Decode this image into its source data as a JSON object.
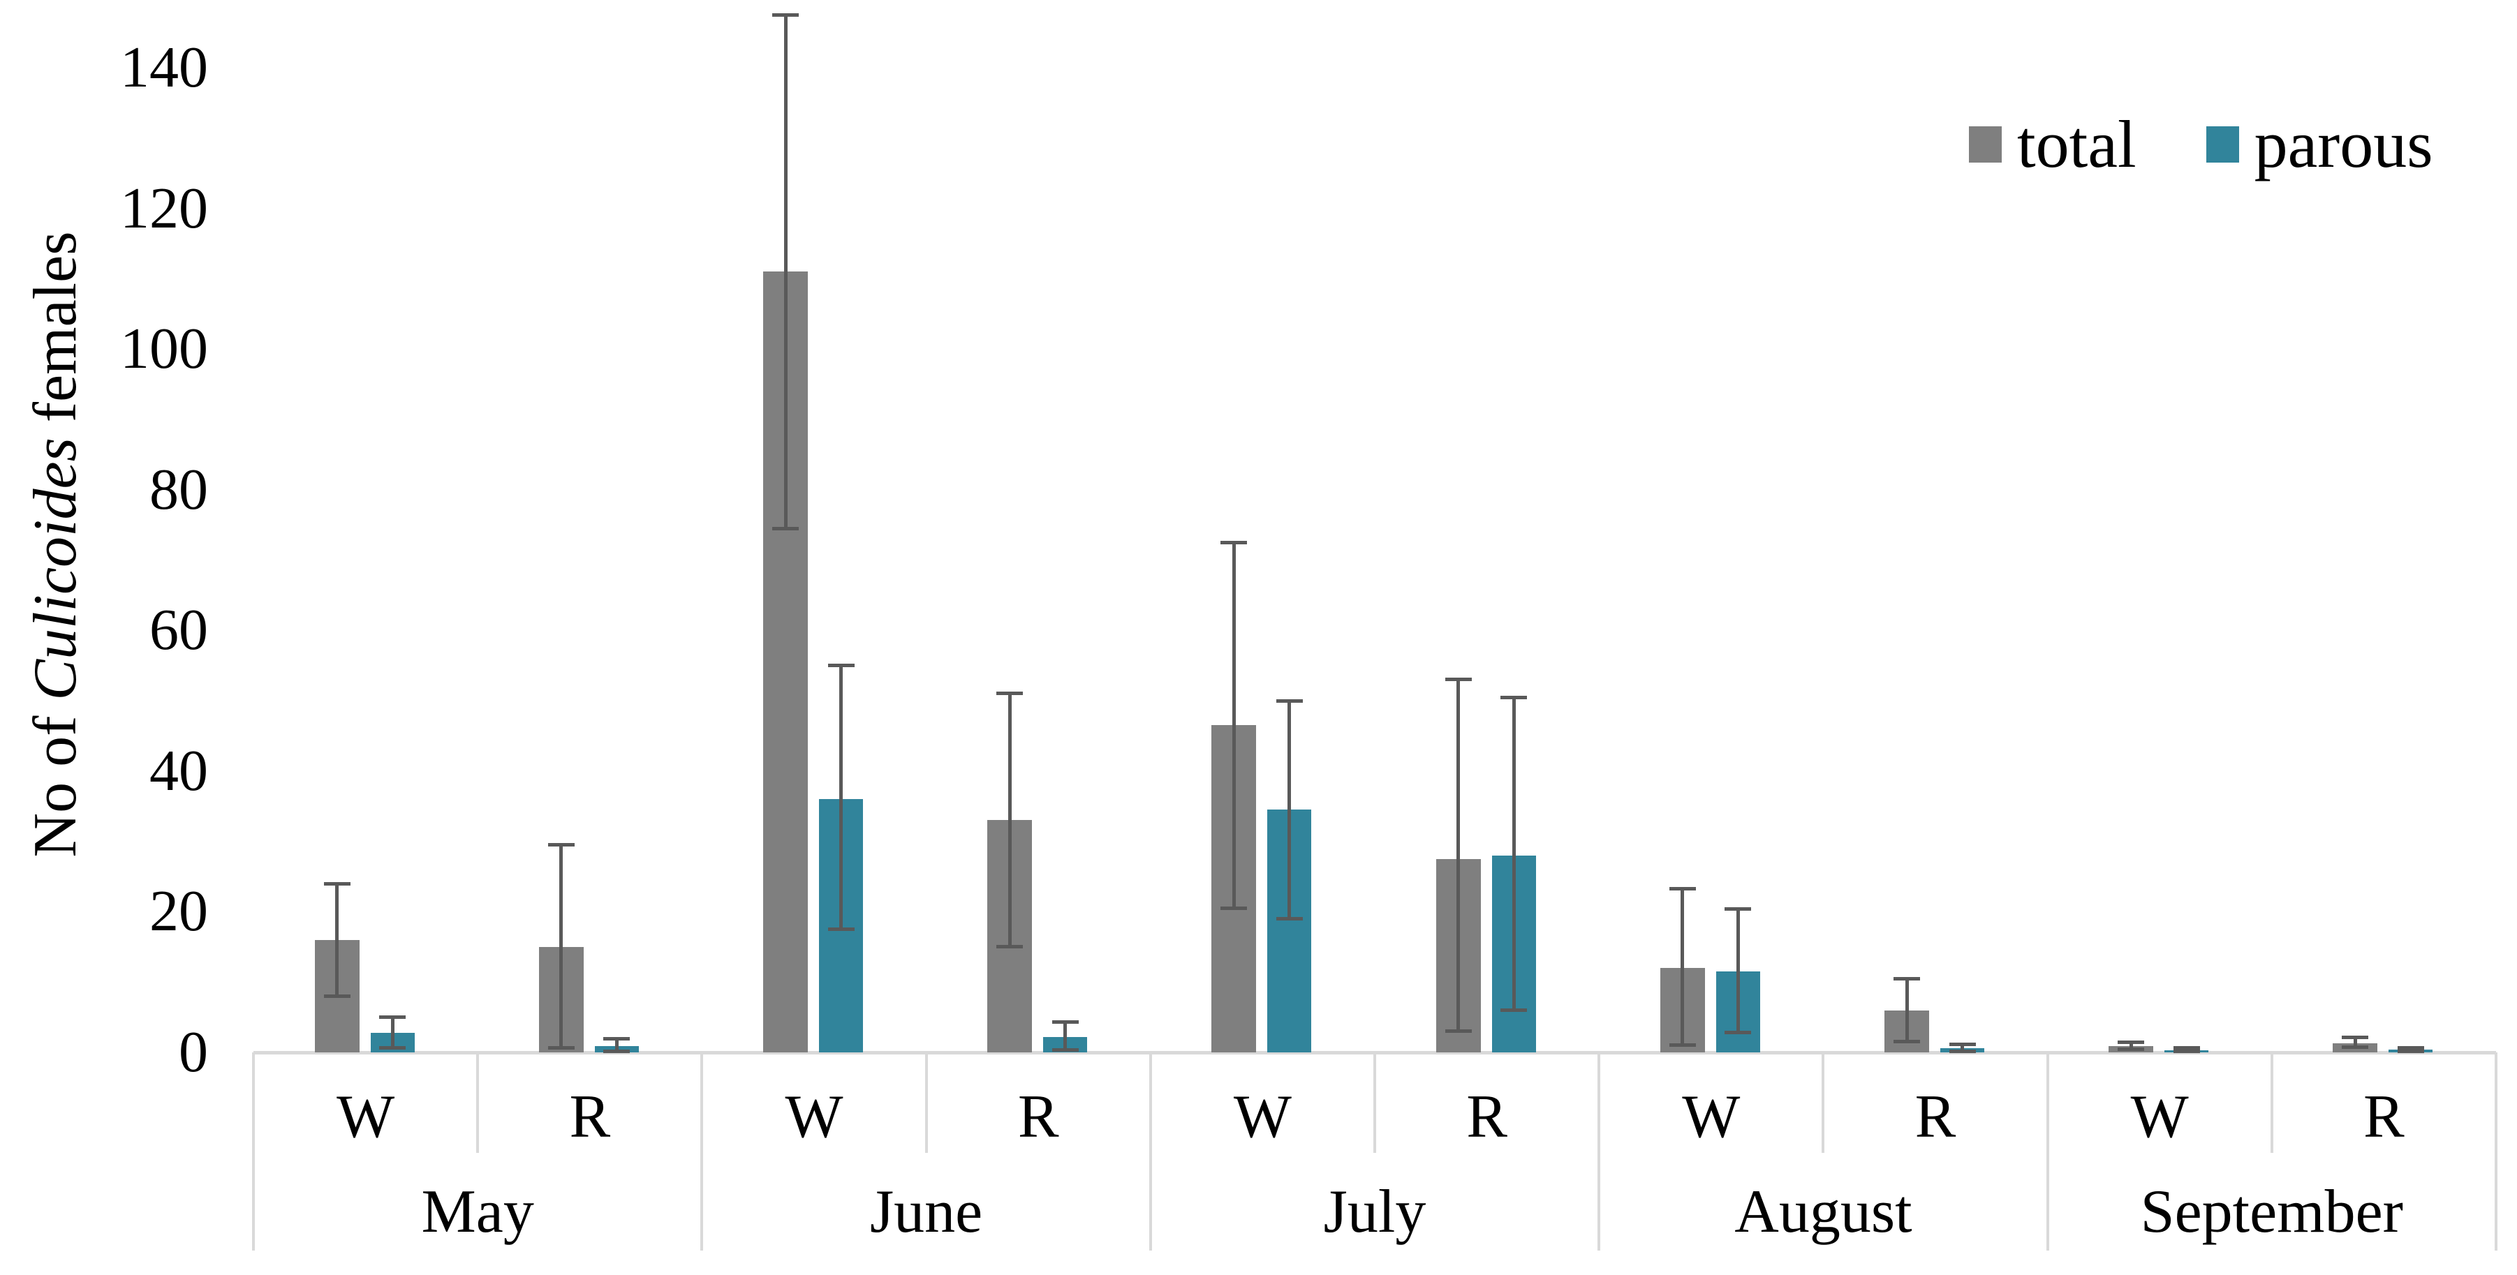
{
  "figure": {
    "y_axis_title": {
      "prefix": "No of ",
      "italic_word": "Culicoides",
      "suffix": " females"
    },
    "legend": {
      "items": [
        {
          "label": "total",
          "color": "#7F7F7F"
        },
        {
          "label": "parous",
          "color": "#31849B"
        }
      ]
    }
  },
  "chart_data": {
    "type": "bar",
    "title": "",
    "ylabel": "No of Culicoides females",
    "xlabel": "",
    "ylim": [
      0,
      148
    ],
    "yticks": [
      0,
      20,
      40,
      60,
      80,
      100,
      120,
      140
    ],
    "grid": false,
    "legend_position": "top-right",
    "months": [
      "May",
      "June",
      "July",
      "August",
      "September"
    ],
    "sites_per_month": [
      "W",
      "R"
    ],
    "categories": [
      "May W",
      "May R",
      "June W",
      "June R",
      "July W",
      "July R",
      "August W",
      "August R",
      "September W",
      "September R"
    ],
    "series": [
      {
        "name": "total",
        "color": "#7F7F7F",
        "values": [
          16,
          15,
          111,
          33,
          46.5,
          27.5,
          12,
          6,
          0.9,
          1.3
        ],
        "error_low": [
          8,
          0.6,
          74.5,
          15,
          20.5,
          3,
          1,
          1.5,
          0.4,
          0.7
        ],
        "error_high": [
          24,
          29.5,
          147.5,
          51,
          72.5,
          53,
          23.3,
          10.5,
          1.4,
          2.1
        ]
      },
      {
        "name": "parous",
        "color": "#31849B",
        "values": [
          2.8,
          0.9,
          36,
          2.2,
          34.5,
          28,
          11.5,
          0.6,
          0.3,
          0.35
        ],
        "error_low": [
          0.6,
          0.1,
          17.5,
          0.3,
          19,
          6,
          2.8,
          0.1,
          0.1,
          0.1
        ],
        "error_high": [
          5,
          1.9,
          55,
          4.3,
          50,
          50.5,
          20.4,
          1.1,
          0.6,
          0.6
        ]
      }
    ],
    "error_bar_color": "#595959",
    "axis_line_color": "#D9D9D9"
  }
}
